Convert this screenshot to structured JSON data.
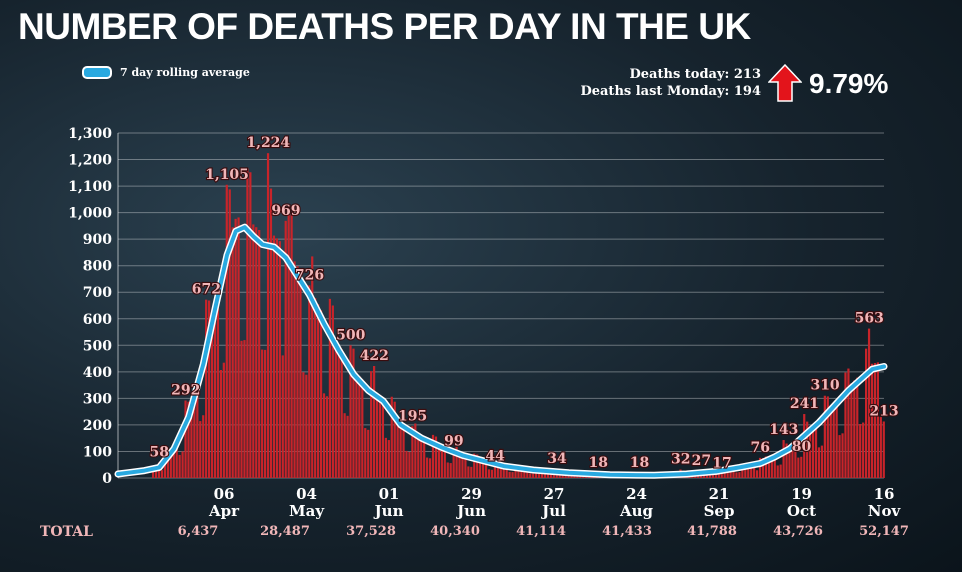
{
  "header": {
    "title": "NUMBER OF DEATHS PER DAY IN THE UK",
    "legend_label": "7 day rolling average",
    "deaths_today": "Deaths today: 213",
    "deaths_last_monday": "Deaths last Monday: 194",
    "change_pct": "9.79%"
  },
  "colors": {
    "bars": "#c8242a",
    "line": "#29a9e0",
    "arrow": "#e3141b",
    "annotation": "#f0b6b8"
  },
  "totals": {
    "label": "TOTAL",
    "values": [
      "6,437",
      "28,487",
      "37,528",
      "40,340",
      "41,114",
      "41,433",
      "41,788",
      "43,726",
      "52,147"
    ]
  },
  "chart_data": {
    "type": "bar",
    "title": "NUMBER OF DEATHS PER DAY IN THE UK",
    "ylim": [
      0,
      1300
    ],
    "y_ticks": [
      "0",
      "100",
      "200",
      "300",
      "400",
      "500",
      "600",
      "700",
      "800",
      "900",
      "1,000",
      "1,100",
      "1,200",
      "1,300"
    ],
    "grid": true,
    "x_ticks": [
      {
        "day": "06",
        "month": "Apr"
      },
      {
        "day": "04",
        "month": "May"
      },
      {
        "day": "01",
        "month": "Jun"
      },
      {
        "day": "29",
        "month": "Jun"
      },
      {
        "day": "27",
        "month": "Jul"
      },
      {
        "day": "24",
        "month": "Aug"
      },
      {
        "day": "21",
        "month": "Sep"
      },
      {
        "day": "19",
        "month": "Oct"
      },
      {
        "day": "16",
        "month": "Nov"
      }
    ],
    "x_start_date": "2020-03-01",
    "x_end_date": "2020-11-16",
    "annotations": [
      {
        "date": "2020-03-15",
        "value": 58,
        "label": "58"
      },
      {
        "date": "2020-03-24",
        "value": 292,
        "label": "292"
      },
      {
        "date": "2020-03-31",
        "value": 672,
        "label": "672"
      },
      {
        "date": "2020-04-07",
        "value": 1105,
        "label": "1,105"
      },
      {
        "date": "2020-04-21",
        "value": 1224,
        "label": "1,224"
      },
      {
        "date": "2020-04-27",
        "value": 969,
        "label": "969"
      },
      {
        "date": "2020-05-05",
        "value": 726,
        "label": "726"
      },
      {
        "date": "2020-05-19",
        "value": 500,
        "label": "500"
      },
      {
        "date": "2020-05-27",
        "value": 422,
        "label": "422"
      },
      {
        "date": "2020-06-09",
        "value": 195,
        "label": "195"
      },
      {
        "date": "2020-06-23",
        "value": 99,
        "label": "99"
      },
      {
        "date": "2020-07-07",
        "value": 44,
        "label": "44"
      },
      {
        "date": "2020-07-28",
        "value": 34,
        "label": "34"
      },
      {
        "date": "2020-08-11",
        "value": 18,
        "label": "18"
      },
      {
        "date": "2020-08-25",
        "value": 18,
        "label": "18"
      },
      {
        "date": "2020-09-08",
        "value": 32,
        "label": "32"
      },
      {
        "date": "2020-09-15",
        "value": 27,
        "label": "27"
      },
      {
        "date": "2020-09-22",
        "value": 17,
        "label": "17"
      },
      {
        "date": "2020-10-05",
        "value": 76,
        "label": "76"
      },
      {
        "date": "2020-10-13",
        "value": 143,
        "label": "143"
      },
      {
        "date": "2020-10-19",
        "value": 80,
        "label": "80"
      },
      {
        "date": "2020-10-20",
        "value": 241,
        "label": "241"
      },
      {
        "date": "2020-10-27",
        "value": 310,
        "label": "310"
      },
      {
        "date": "2020-11-11",
        "value": 563,
        "label": "563"
      },
      {
        "date": "2020-11-16",
        "value": 213,
        "label": "213"
      }
    ],
    "rolling_average": [
      {
        "date": "2020-03-01",
        "value": 15
      },
      {
        "date": "2020-03-10",
        "value": 28
      },
      {
        "date": "2020-03-15",
        "value": 40
      },
      {
        "date": "2020-03-20",
        "value": 110
      },
      {
        "date": "2020-03-25",
        "value": 230
      },
      {
        "date": "2020-03-30",
        "value": 430
      },
      {
        "date": "2020-04-03",
        "value": 640
      },
      {
        "date": "2020-04-07",
        "value": 840
      },
      {
        "date": "2020-04-10",
        "value": 930
      },
      {
        "date": "2020-04-13",
        "value": 945
      },
      {
        "date": "2020-04-16",
        "value": 910
      },
      {
        "date": "2020-04-19",
        "value": 880
      },
      {
        "date": "2020-04-23",
        "value": 870
      },
      {
        "date": "2020-04-27",
        "value": 830
      },
      {
        "date": "2020-05-01",
        "value": 760
      },
      {
        "date": "2020-05-05",
        "value": 690
      },
      {
        "date": "2020-05-10",
        "value": 580
      },
      {
        "date": "2020-05-15",
        "value": 480
      },
      {
        "date": "2020-05-20",
        "value": 390
      },
      {
        "date": "2020-05-25",
        "value": 330
      },
      {
        "date": "2020-05-30",
        "value": 290
      },
      {
        "date": "2020-06-05",
        "value": 200
      },
      {
        "date": "2020-06-12",
        "value": 150
      },
      {
        "date": "2020-06-19",
        "value": 115
      },
      {
        "date": "2020-06-26",
        "value": 85
      },
      {
        "date": "2020-07-03",
        "value": 65
      },
      {
        "date": "2020-07-10",
        "value": 45
      },
      {
        "date": "2020-07-20",
        "value": 30
      },
      {
        "date": "2020-08-01",
        "value": 20
      },
      {
        "date": "2020-08-15",
        "value": 12
      },
      {
        "date": "2020-08-30",
        "value": 10
      },
      {
        "date": "2020-09-10",
        "value": 15
      },
      {
        "date": "2020-09-20",
        "value": 25
      },
      {
        "date": "2020-09-28",
        "value": 40
      },
      {
        "date": "2020-10-05",
        "value": 55
      },
      {
        "date": "2020-10-10",
        "value": 80
      },
      {
        "date": "2020-10-15",
        "value": 110
      },
      {
        "date": "2020-10-20",
        "value": 160
      },
      {
        "date": "2020-10-25",
        "value": 210
      },
      {
        "date": "2020-10-30",
        "value": 270
      },
      {
        "date": "2020-11-04",
        "value": 330
      },
      {
        "date": "2020-11-08",
        "value": 370
      },
      {
        "date": "2020-11-12",
        "value": 410
      },
      {
        "date": "2020-11-16",
        "value": 420
      }
    ]
  }
}
